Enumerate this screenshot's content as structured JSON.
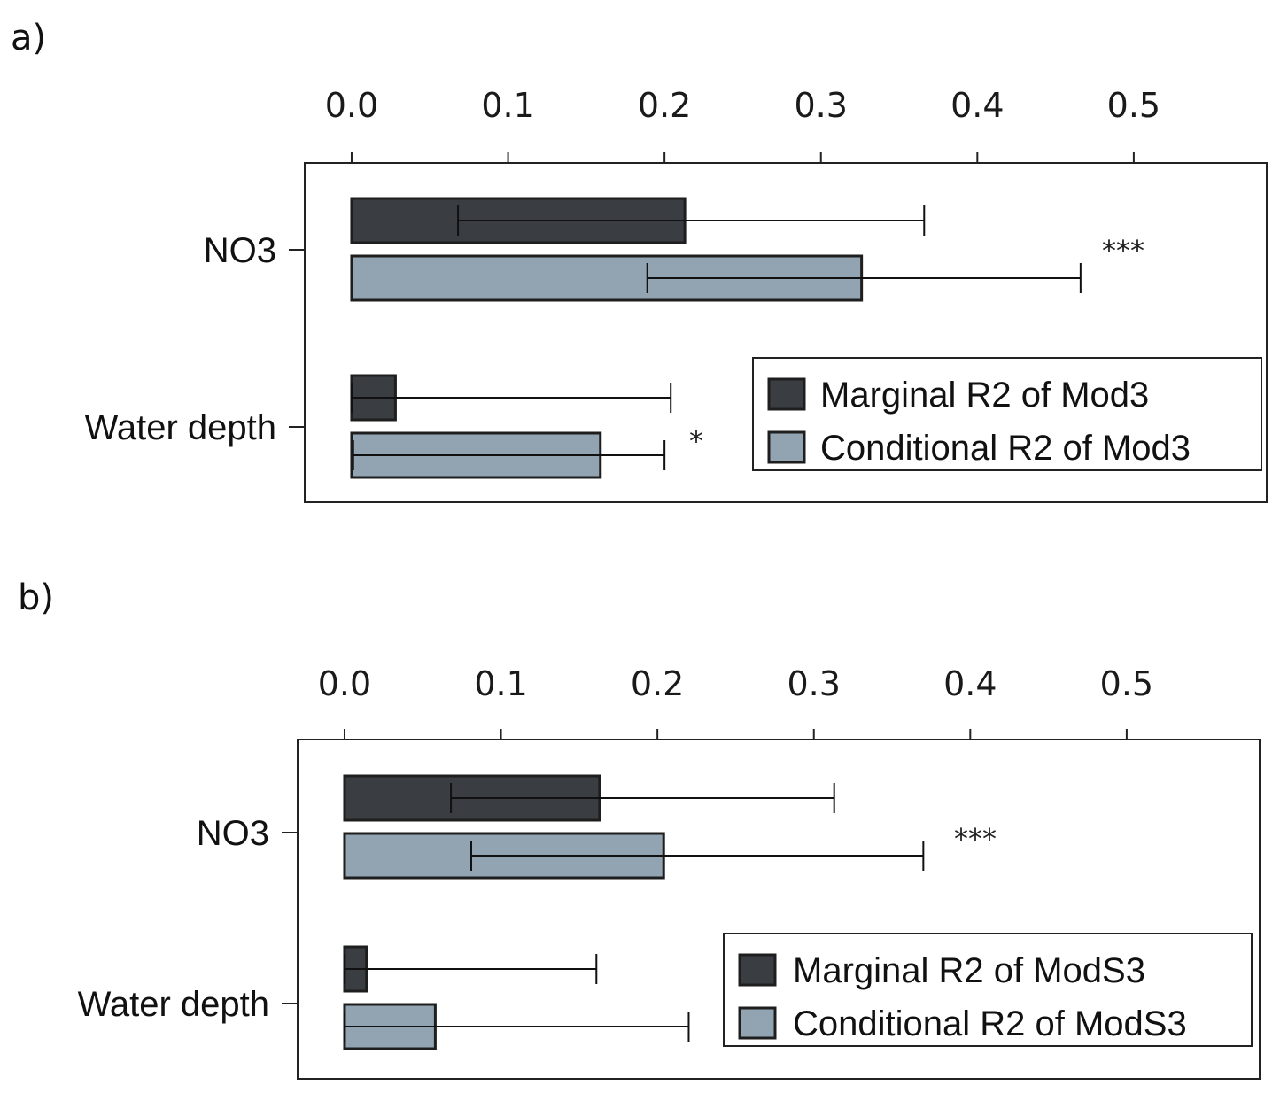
{
  "chart_data": [
    {
      "panel": "a)",
      "type": "bar",
      "orientation": "horizontal",
      "categories": [
        "NO3",
        "Water depth"
      ],
      "series": [
        {
          "name": "Marginal R2 of Mod3",
          "color": "#3a3e42",
          "values": [
            0.213,
            0.028
          ],
          "ci_low": [
            0.068,
            0.0
          ],
          "ci_high": [
            0.366,
            0.204
          ]
        },
        {
          "name": "Conditional R2 of Mod3",
          "color": "#92a4b1",
          "values": [
            0.326,
            0.159
          ],
          "ci_low": [
            0.189,
            0.001
          ],
          "ci_high": [
            0.466,
            0.2
          ]
        }
      ],
      "significance": [
        "***",
        "*"
      ],
      "xlim": [
        -0.03,
        0.585
      ],
      "xticks": [
        0.0,
        0.1,
        0.2,
        0.3,
        0.4,
        0.5
      ],
      "xtick_labels": [
        "0.0",
        "0.1",
        "0.2",
        "0.3",
        "0.4",
        "0.5"
      ],
      "legend_position": "bottom-right"
    },
    {
      "panel": "b)",
      "type": "bar",
      "orientation": "horizontal",
      "categories": [
        "NO3",
        "Water depth"
      ],
      "series": [
        {
          "name": "Marginal R2 of ModS3",
          "color": "#3a3e42",
          "values": [
            0.163,
            0.014
          ],
          "ci_low": [
            0.068,
            0.0
          ],
          "ci_high": [
            0.313,
            0.161
          ]
        },
        {
          "name": "Conditional R2 of ModS3",
          "color": "#92a4b1",
          "values": [
            0.204,
            0.058
          ],
          "ci_low": [
            0.081,
            0.0
          ],
          "ci_high": [
            0.37,
            0.22
          ]
        }
      ],
      "significance": [
        "***",
        ""
      ],
      "xlim": [
        -0.03,
        0.585
      ],
      "xticks": [
        0.0,
        0.1,
        0.2,
        0.3,
        0.4,
        0.5
      ],
      "xtick_labels": [
        "0.0",
        "0.1",
        "0.2",
        "0.3",
        "0.4",
        "0.5"
      ],
      "legend_position": "bottom-right"
    }
  ]
}
